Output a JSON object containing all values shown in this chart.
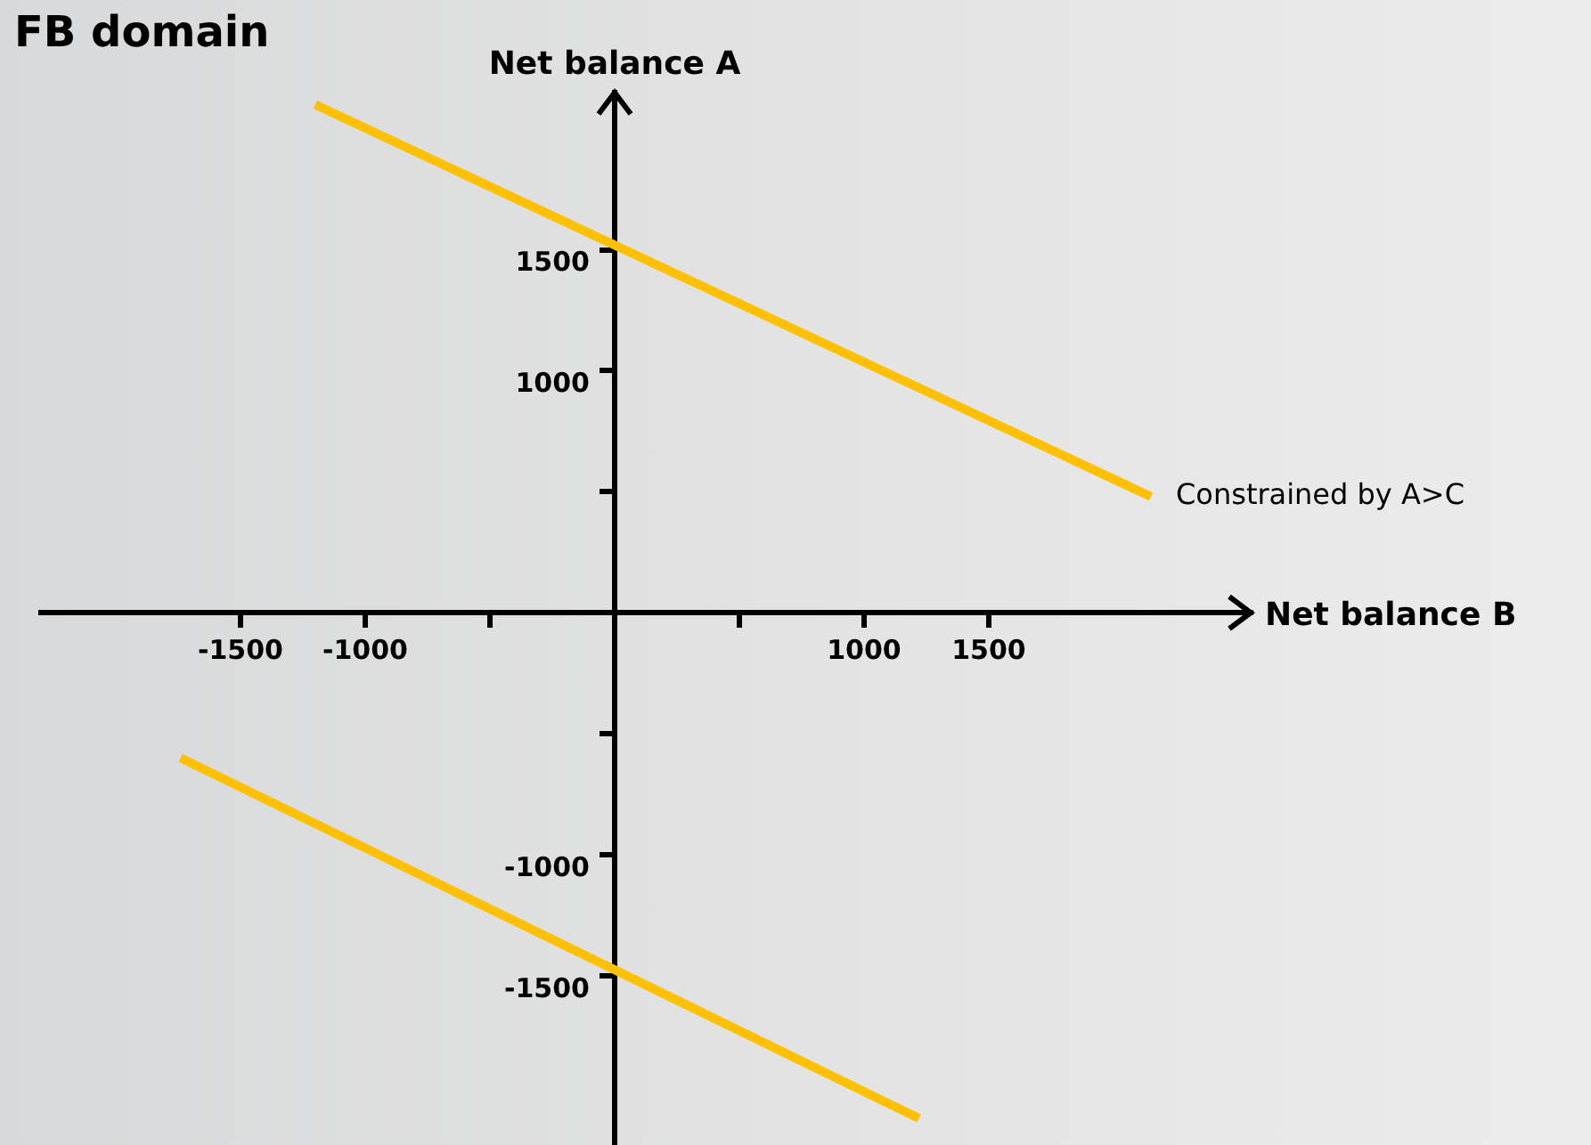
{
  "chart_data": {
    "type": "line",
    "title": "FB domain",
    "xlabel": "Net balance B",
    "ylabel": "Net balance A",
    "xlim": [
      -2300,
      2550
    ],
    "ylim": [
      -2200,
      2150
    ],
    "xticks": [
      -1500,
      -1000,
      {
        "value": -500,
        "label": null
      },
      {
        "value": 500,
        "label": null
      },
      1000,
      1500
    ],
    "yticks": [
      -1500,
      -1000,
      {
        "value": -500,
        "label": null
      },
      {
        "value": 500,
        "label": null
      },
      1000,
      1500
    ],
    "series": [
      {
        "name": "Constrained by A>C",
        "color": "#ffc000",
        "x": [
          -1200,
          2150
        ],
        "values": [
          2100,
          480
        ]
      },
      {
        "color": "#ffc000",
        "x": [
          -1740,
          1220
        ],
        "values": [
          -600,
          -2090
        ]
      }
    ],
    "grid": false,
    "legend": false,
    "marker": "none",
    "line_style": "solid"
  }
}
